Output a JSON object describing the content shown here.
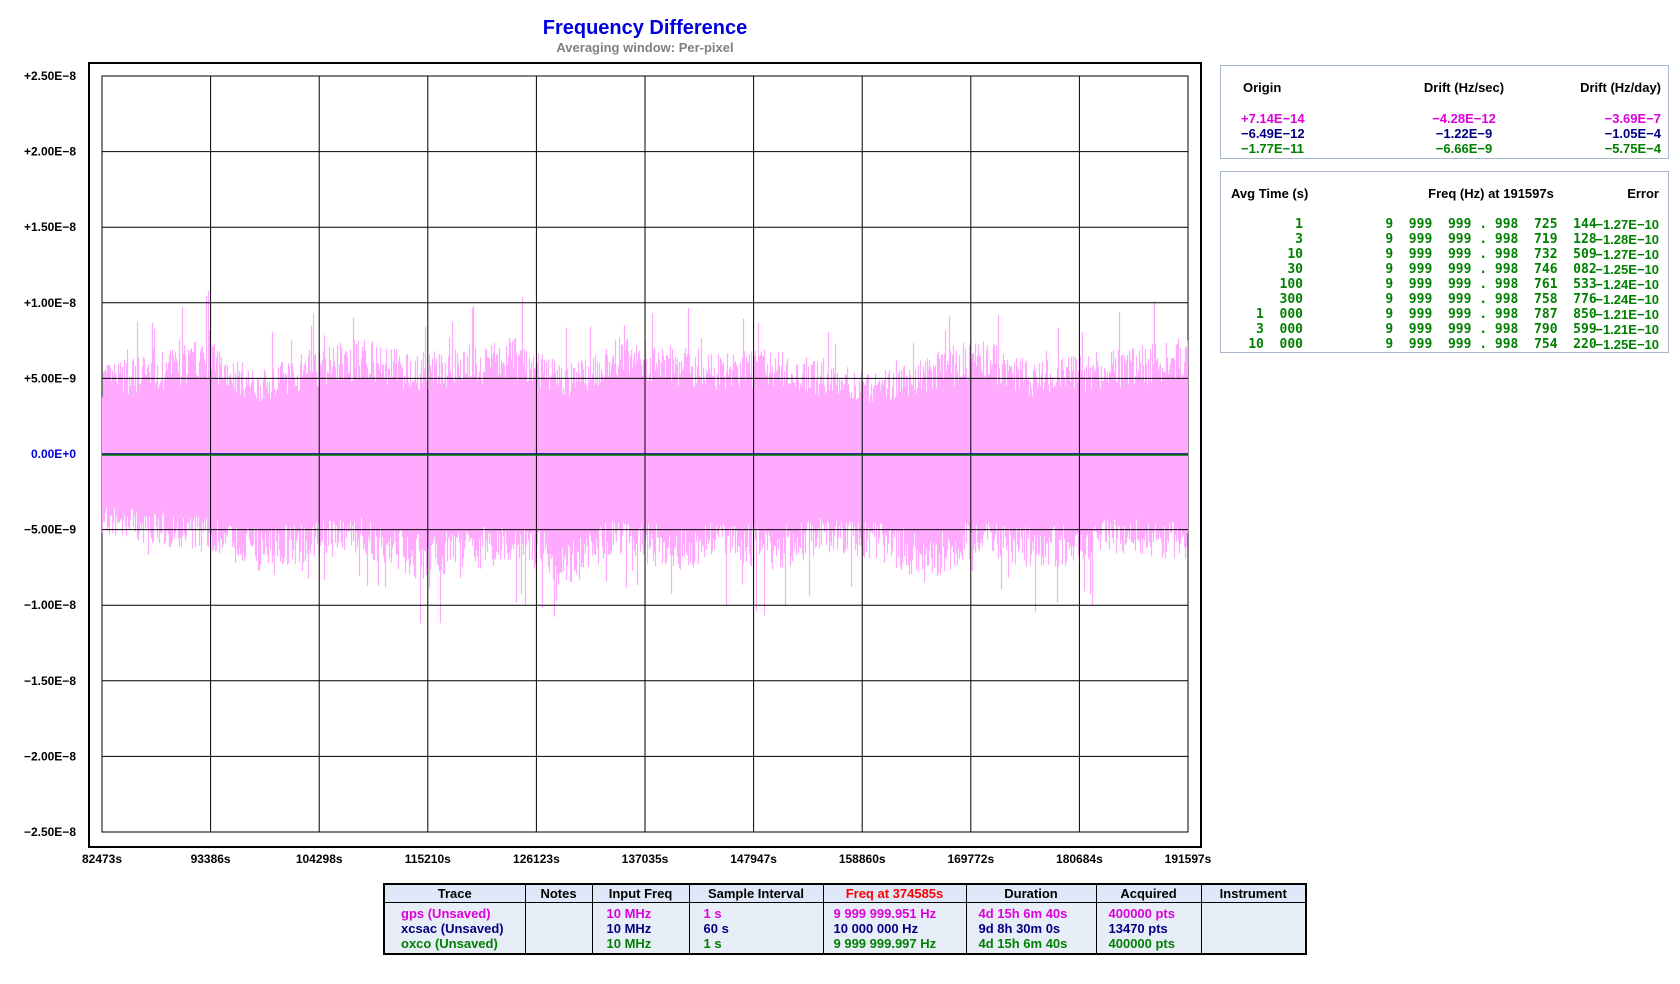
{
  "chart_data": {
    "type": "line",
    "title": "Frequency Difference",
    "subtitle": "Averaging window: Per-pixel",
    "x_tick_labels": [
      "82473s",
      "93386s",
      "104298s",
      "115210s",
      "126123s",
      "137035s",
      "147947s",
      "158860s",
      "169772s",
      "180684s",
      "191597s"
    ],
    "y_tick_labels": [
      "+2.50E−8",
      "+2.00E−8",
      "+1.50E−8",
      "+1.00E−8",
      "+5.00E−9",
      "0.00E+0",
      "−5.00E−9",
      "−1.00E−8",
      "−1.50E−8",
      "−2.00E−8",
      "−2.50E−8"
    ],
    "xlim": [
      82473,
      191597
    ],
    "ylim": [
      -2.5e-08,
      2.5e-08
    ],
    "grid": true,
    "series": [
      {
        "name": "gps (Unsaved)",
        "color": "#ffaaff",
        "style": "noise band",
        "upper_envelope": [
          5e-09,
          5.5e-09,
          6.5e-09,
          4.5e-09,
          5.8e-09,
          6.5e-09,
          5.5e-09,
          6e-09,
          6.5e-09,
          5e-09,
          6.5e-09,
          6e-09,
          5.5e-09,
          6e-09,
          5e-09,
          4.5e-09,
          5.5e-09,
          6.5e-09,
          5e-09,
          5.5e-09,
          6e-09,
          6.5e-09
        ],
        "lower_envelope": [
          -4.5e-09,
          -5e-09,
          -5.5e-09,
          -6.5e-09,
          -6e-09,
          -5.5e-09,
          -7e-09,
          -6.5e-09,
          -6e-09,
          -7.5e-09,
          -5.5e-09,
          -6.5e-09,
          -6e-09,
          -6.5e-09,
          -5.5e-09,
          -6e-09,
          -7e-09,
          -5.5e-09,
          -6.5e-09,
          -6e-09,
          -5.5e-09,
          -6e-09
        ],
        "peak_max": 1.08e-08,
        "peak_min": -1.12e-08
      },
      {
        "name": "xcsac (Unsaved)",
        "color": "#000080",
        "style": "flat",
        "value": 0.0
      },
      {
        "name": "oxco (Unsaved)",
        "color": "#008000",
        "style": "flat",
        "value": 0.0
      }
    ]
  },
  "drift_panel": {
    "headers": [
      "Origin",
      "Drift (Hz/sec)",
      "Drift (Hz/day)"
    ],
    "rows": [
      {
        "origin": "+7.14E−14",
        "drift_sec": "−4.28E−12",
        "drift_day": "−3.69E−7",
        "color": "#dd00dd"
      },
      {
        "origin": "−6.49E−12",
        "drift_sec": "−1.22E−9",
        "drift_day": "−1.05E−4",
        "color": "#000080"
      },
      {
        "origin": "−1.77E−11",
        "drift_sec": "−6.66E−9",
        "drift_day": "−5.75E−4",
        "color": "#008000"
      }
    ]
  },
  "avg_panel": {
    "headers": [
      "Avg Time (s)",
      "Freq (Hz) at 191597s",
      "Error"
    ],
    "rows": [
      {
        "t": "1",
        "freq": "9  999  999 . 998  725  144",
        "err": "−1.27E−10"
      },
      {
        "t": "3",
        "freq": "9  999  999 . 998  719  128",
        "err": "−1.28E−10"
      },
      {
        "t": "10",
        "freq": "9  999  999 . 998  732  509",
        "err": "−1.27E−10"
      },
      {
        "t": "30",
        "freq": "9  999  999 . 998  746  082",
        "err": "−1.25E−10"
      },
      {
        "t": "100",
        "freq": "9  999  999 . 998  761  533",
        "err": "−1.24E−10"
      },
      {
        "t": "300",
        "freq": "9  999  999 . 998  758  776",
        "err": "−1.24E−10"
      },
      {
        "t": "1  000",
        "freq": "9  999  999 . 998  787  850",
        "err": "−1.21E−10"
      },
      {
        "t": "3  000",
        "freq": "9  999  999 . 998  790  599",
        "err": "−1.21E−10"
      },
      {
        "t": "10  000",
        "freq": "9  999  999 . 998  754  220",
        "err": "−1.25E−10"
      }
    ]
  },
  "legend": {
    "headers": [
      "Trace",
      "Notes",
      "Input Freq",
      "Sample Interval",
      "Freq at 374585s",
      "Duration",
      "Acquired",
      "Instrument"
    ],
    "rows": [
      {
        "trace": "gps (Unsaved)",
        "notes": "",
        "input": "10 MHz",
        "interval": "1 s",
        "freq": "9 999 999.951 Hz",
        "duration": "4d 15h 6m 40s",
        "acquired": "400000 pts",
        "instrument": "",
        "color": "#dd00dd"
      },
      {
        "trace": "xcsac (Unsaved)",
        "notes": "",
        "input": "10 MHz",
        "interval": "60 s",
        "freq": "10 000 000 Hz",
        "duration": "9d 8h 30m 0s",
        "acquired": "13470 pts",
        "instrument": "",
        "color": "#000080"
      },
      {
        "trace": "oxco (Unsaved)",
        "notes": "",
        "input": "10 MHz",
        "interval": "1 s",
        "freq": "9 999 999.997 Hz",
        "duration": "4d 15h 6m 40s",
        "acquired": "400000 pts",
        "instrument": "",
        "color": "#008000"
      }
    ]
  }
}
